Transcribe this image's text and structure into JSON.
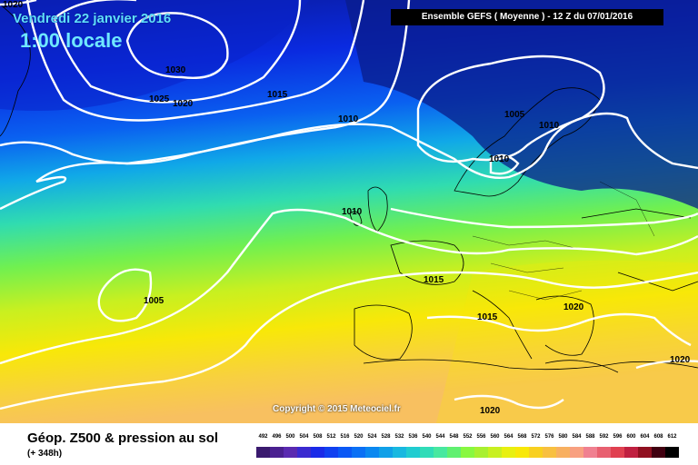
{
  "header": {
    "date": "Vendredi 22 janvier 2016",
    "time": "1:00 locale",
    "model_info": "Ensemble GEFS  ( Moyenne )  -  12 Z du 07/01/2016"
  },
  "copyright": "Copyright © 2015 Meteociel.fr",
  "footer": {
    "title": "Géop. Z500 & pression au sol",
    "lead_time": "(+ 348h)"
  },
  "legend": {
    "values": [
      "492",
      "496",
      "500",
      "504",
      "508",
      "512",
      "516",
      "520",
      "524",
      "528",
      "532",
      "536",
      "540",
      "544",
      "548",
      "552",
      "556",
      "560",
      "564",
      "568",
      "572",
      "576",
      "580",
      "584",
      "588",
      "592",
      "596",
      "600",
      "604",
      "608",
      "612"
    ],
    "colors": [
      "#3a1a6e",
      "#4a2090",
      "#5a2ab0",
      "#3a2ad0",
      "#1a2ae8",
      "#1040f0",
      "#0a58f5",
      "#0a70f5",
      "#0a88f0",
      "#10a0e8",
      "#18b8e0",
      "#20ccd0",
      "#30dcb8",
      "#48e8a0",
      "#60f070",
      "#88f840",
      "#a8f030",
      "#c8f020",
      "#e8f010",
      "#f8e808",
      "#f8d020",
      "#f8c040",
      "#f8b060",
      "#f8a080",
      "#f08090",
      "#e86070",
      "#e04050",
      "#c02040",
      "#901020",
      "#400010",
      "#000000"
    ]
  },
  "isobars": [
    {
      "label": "1020",
      "kind": "pressure"
    },
    {
      "label": "1030",
      "kind": "pressure"
    },
    {
      "label": "1025",
      "kind": "pressure"
    },
    {
      "label": "1020",
      "kind": "pressure"
    },
    {
      "label": "1015",
      "kind": "pressure"
    },
    {
      "label": "1010",
      "kind": "pressure"
    },
    {
      "label": "1005",
      "kind": "pressure"
    },
    {
      "label": "1010",
      "kind": "pressure"
    },
    {
      "label": "1010",
      "kind": "pressure"
    },
    {
      "label": "1010",
      "kind": "pressure"
    },
    {
      "label": "1005",
      "kind": "pressure"
    },
    {
      "label": "1015",
      "kind": "pressure"
    },
    {
      "label": "1015",
      "kind": "pressure"
    },
    {
      "label": "1020",
      "kind": "pressure"
    },
    {
      "label": "1020",
      "kind": "pressure"
    },
    {
      "label": "1020",
      "kind": "pressure"
    }
  ]
}
